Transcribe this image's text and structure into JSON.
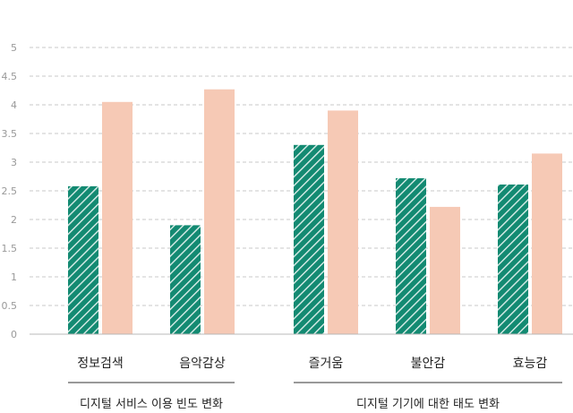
{
  "chart_data": {
    "type": "bar",
    "ylim": [
      0,
      5
    ],
    "yticks": [
      "0",
      "0.5",
      "1",
      "1.5",
      "2",
      "2.5",
      "3",
      "3.5",
      "4",
      "4.5",
      "5"
    ],
    "grid": true,
    "colors": {
      "series_a": "#138a72",
      "series_b": "#f6c9b5",
      "grid": "#c8c8c8",
      "axis": "#b8b8b8",
      "text": "#222222",
      "tick": "#999999"
    },
    "groups": [
      {
        "label": "디지털 서비스 이용 빈도 변화",
        "categories": [
          "정보검색",
          "음악감상"
        ]
      },
      {
        "label": "디지털 기기에 대한 태도 변화",
        "categories": [
          "즐거움",
          "불안감",
          "효능감"
        ]
      }
    ],
    "categories": [
      "정보검색",
      "음악감상",
      "즐거움",
      "불안감",
      "효능감"
    ],
    "series": [
      {
        "values": [
          2.58,
          1.9,
          3.3,
          2.72,
          2.61
        ]
      },
      {
        "values": [
          4.05,
          4.27,
          3.9,
          2.22,
          3.15
        ]
      }
    ]
  }
}
